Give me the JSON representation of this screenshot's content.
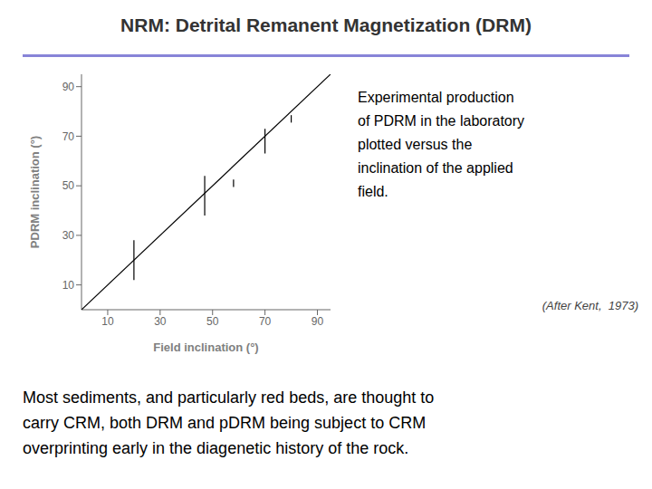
{
  "chart_data": {
    "type": "scatter",
    "title": "NRM: Detrital Remanent Magnetization (DRM)",
    "xlabel": "Field inclination (°)",
    "ylabel": "PDRM inclination (°)",
    "xlim": [
      0,
      95
    ],
    "ylim": [
      0,
      95
    ],
    "xticks": [
      10,
      30,
      50,
      70,
      90
    ],
    "yticks": [
      10,
      30,
      50,
      70,
      90
    ],
    "grid": false,
    "series": [
      {
        "type": "line",
        "color": "#000000",
        "marker": "none",
        "x": [
          0,
          95
        ],
        "values": [
          0,
          95
        ]
      },
      {
        "type": "scatter",
        "color": "#000000",
        "marker": "none",
        "x": [
          20,
          47,
          58,
          70,
          80
        ],
        "values": [
          20,
          46,
          51,
          68,
          77
        ],
        "yerr": [
          8,
          8,
          1.5,
          5,
          1.5
        ]
      }
    ],
    "annotations": [
      "Experimental production\nof PDRM in the laboratory\nplotted versus the\ninclination of the applied\nfield.",
      "(After Kent,  1973)",
      "Most sediments, and particularly red beds, are thought to",
      "carry CRM, both DRM and pDRM being subject to CRM",
      "overprinting early in the diagenetic history of the rock."
    ]
  }
}
